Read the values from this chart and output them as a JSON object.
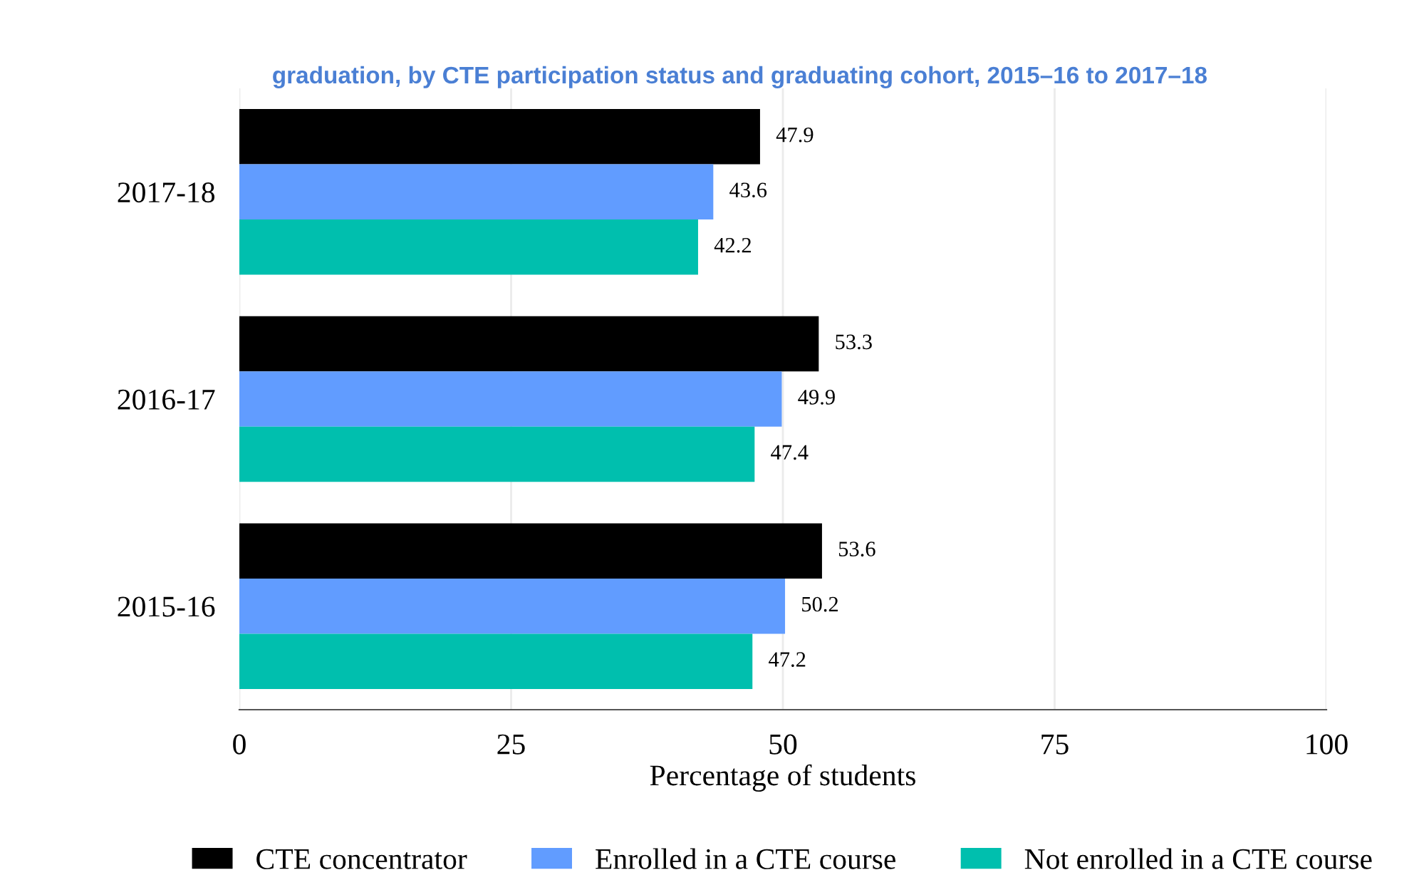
{
  "chart_data": {
    "type": "bar",
    "orientation": "horizontal",
    "title": "graduation, by CTE participation status and graduating cohort, 2015–16 to 2017–18",
    "xlabel": "Percentage of students",
    "categories": [
      "2017-18",
      "2016-17",
      "2015-16"
    ],
    "series": [
      {
        "name": "CTE concentrator",
        "color": "#000000",
        "values": [
          47.9,
          53.3,
          53.6
        ]
      },
      {
        "name": "Enrolled in a CTE course",
        "color": "#619cff",
        "values": [
          43.6,
          49.9,
          50.2
        ]
      },
      {
        "name": "Not enrolled in a CTE course",
        "color": "#00bfae",
        "values": [
          42.2,
          47.4,
          47.2
        ]
      }
    ],
    "xlim": [
      0,
      100
    ],
    "xticks": [
      0,
      25,
      50,
      75,
      100
    ],
    "grid": "x",
    "legend": "bottom",
    "data_labels": true
  }
}
